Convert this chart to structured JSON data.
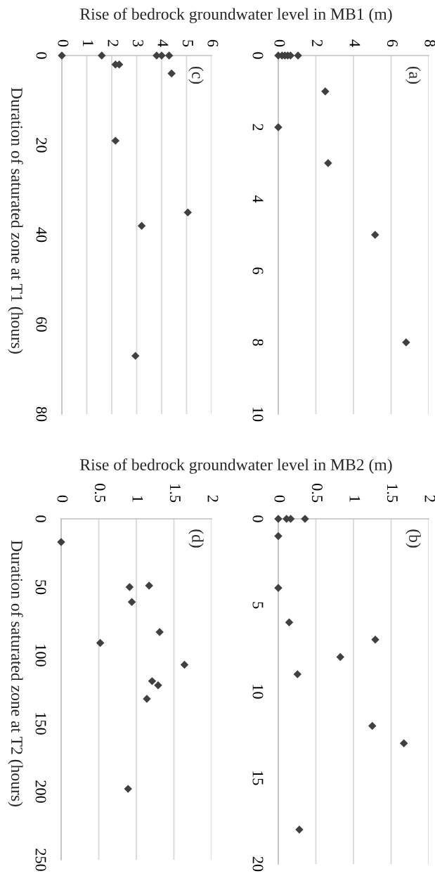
{
  "chart_data": [
    {
      "type": "scatter",
      "xlabel": "Rise of bedrock groundwater level in MB1 (m)",
      "ylabel": "Duration of saturated zone at T1 (hours)",
      "annotations": [
        "(c)"
      ],
      "color": "#404040",
      "marker": "diamond",
      "grid": "x",
      "x": [
        0,
        1.6,
        3.8,
        4.0,
        4.3,
        2.15,
        2.3,
        4.4,
        2.15,
        5.05,
        3.2,
        2.95
      ],
      "values": [
        0,
        0,
        0,
        0,
        0,
        2,
        2,
        4,
        19,
        35,
        38,
        67
      ],
      "xlim": [
        0,
        6
      ],
      "xticks": [
        0,
        1,
        2,
        3,
        4,
        5,
        6
      ],
      "ylim": [
        80,
        0
      ],
      "yticks": [
        0,
        20,
        40,
        60,
        80
      ]
    },
    {
      "type": "scatter",
      "annotations": [
        "(a)"
      ],
      "color": "#404040",
      "marker": "diamond",
      "grid": "x",
      "x": [
        0,
        0.2,
        0.35,
        0.5,
        0.65,
        1.05,
        2.5,
        0,
        2.65,
        5.15,
        6.8
      ],
      "values": [
        0,
        0,
        0,
        0,
        0,
        0,
        1,
        2,
        3,
        5,
        8
      ],
      "xlim": [
        0,
        8
      ],
      "xticks": [
        0,
        2,
        4,
        6,
        8
      ],
      "ylim": [
        10,
        0
      ],
      "yticks": [
        0,
        2,
        4,
        6,
        8,
        10
      ]
    },
    {
      "type": "scatter",
      "xlabel": "Rise of bedrock groundwater level in MB2 (m)",
      "ylabel": "Duration of saturated zone at T2 (hours)",
      "annotations": [
        "(d)"
      ],
      "color": "#404040",
      "marker": "diamond",
      "grid": "x",
      "x": [
        0,
        0.91,
        1.17,
        0.94,
        1.31,
        0.52,
        1.64,
        1.21,
        1.29,
        1.14,
        0.89
      ],
      "values": [
        17,
        50,
        49,
        61,
        83,
        91,
        107,
        119,
        122,
        132,
        198
      ],
      "xlim": [
        0,
        2
      ],
      "xticks": [
        0,
        0.5,
        1,
        1.5,
        2
      ],
      "ylim": [
        250,
        0
      ],
      "yticks": [
        0,
        50,
        100,
        150,
        200,
        250
      ]
    },
    {
      "type": "scatter",
      "annotations": [
        "(b)"
      ],
      "color": "#404040",
      "marker": "diamond",
      "grid": "x",
      "x": [
        0,
        0.11,
        0.165,
        0.355,
        0,
        0,
        0.145,
        1.29,
        0.825,
        0.255,
        1.25,
        1.67,
        0.28
      ],
      "values": [
        0,
        0,
        0,
        0,
        1,
        4,
        6,
        7,
        8,
        9,
        12,
        13,
        18
      ],
      "xlim": [
        0,
        2
      ],
      "xticks": [
        0,
        0.5,
        1,
        1.5,
        2
      ],
      "ylim": [
        20,
        0
      ],
      "yticks": [
        0,
        5,
        10,
        15,
        20
      ]
    }
  ]
}
